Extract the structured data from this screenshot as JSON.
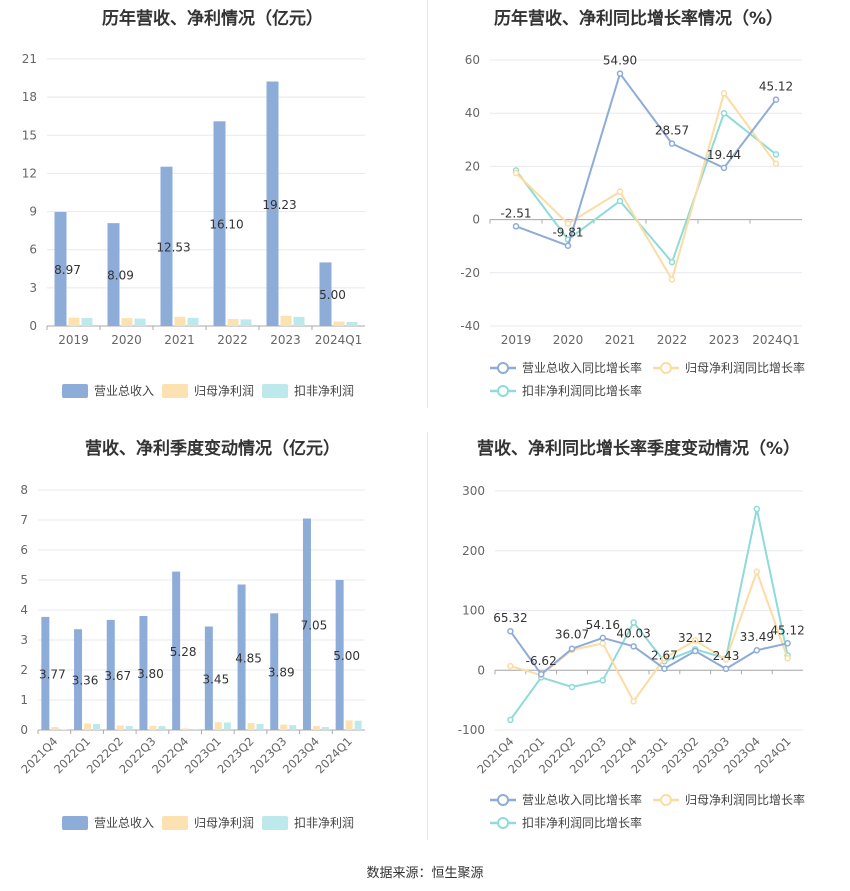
{
  "source": "数据来源：恒生聚源",
  "colors": {
    "revenue": "#8eacd8",
    "net_profit": "#fbe2b0",
    "deducted_profit": "#bde8ec",
    "revenue_line": "#8eacd8",
    "net_line": "#fcdca2",
    "deducted_line": "#8edbd9",
    "grid": "#e8e8ee",
    "axis_text": "#666666"
  },
  "chart_data": [
    {
      "id": "annual-amount",
      "type": "bar",
      "title": "历年营收、净利情况（亿元）",
      "categories": [
        "2019",
        "2020",
        "2021",
        "2022",
        "2023",
        "2024Q1"
      ],
      "ylim": [
        0,
        21
      ],
      "yticks": [
        0,
        3,
        6,
        9,
        12,
        15,
        18,
        21
      ],
      "series": [
        {
          "name": "营业总收入",
          "values": [
            8.97,
            8.09,
            12.53,
            16.1,
            19.23,
            5.0
          ],
          "labels": [
            "8.97",
            "8.09",
            "12.53",
            "16.10",
            "19.23",
            "5.00"
          ]
        },
        {
          "name": "归母净利润",
          "values": [
            0.65,
            0.62,
            0.72,
            0.55,
            0.8,
            0.35
          ]
        },
        {
          "name": "扣非净利润",
          "values": [
            0.62,
            0.58,
            0.64,
            0.52,
            0.72,
            0.32
          ]
        }
      ],
      "legend_position": "bottom"
    },
    {
      "id": "annual-growth",
      "type": "line",
      "title": "历年营收、净利同比增长率情况（%）",
      "categories": [
        "2019",
        "2020",
        "2021",
        "2022",
        "2023",
        "2024Q1"
      ],
      "ylim": [
        -40,
        60
      ],
      "yticks": [
        -40,
        -20,
        0,
        20,
        40,
        60
      ],
      "series": [
        {
          "name": "营业总收入同比增长率",
          "values": [
            -2.51,
            -9.81,
            54.9,
            28.57,
            19.44,
            45.12
          ],
          "labels": [
            "-2.51",
            "-9.81",
            "54.90",
            "28.57",
            "19.44",
            "45.12"
          ]
        },
        {
          "name": "归母净利润同比增长率",
          "values": [
            17.5,
            -1.5,
            10.5,
            -22.5,
            47.5,
            21.0
          ]
        },
        {
          "name": "扣非净利润同比增长率",
          "values": [
            18.5,
            -7.5,
            7.0,
            -16.0,
            40.0,
            24.5
          ]
        }
      ],
      "legend_position": "bottom"
    },
    {
      "id": "quarterly-amount",
      "type": "bar",
      "title": "营收、净利季度变动情况（亿元）",
      "categories": [
        "2021Q4",
        "2022Q1",
        "2022Q2",
        "2022Q3",
        "2022Q4",
        "2023Q1",
        "2023Q2",
        "2023Q3",
        "2023Q4",
        "2024Q1"
      ],
      "ylim": [
        0,
        8
      ],
      "yticks": [
        0,
        1,
        2,
        3,
        4,
        5,
        6,
        7,
        8
      ],
      "series": [
        {
          "name": "营业总收入",
          "values": [
            3.77,
            3.36,
            3.67,
            3.8,
            5.28,
            3.45,
            4.85,
            3.89,
            7.05,
            5.0
          ],
          "labels": [
            "3.77",
            "3.36",
            "3.67",
            "3.80",
            "5.28",
            "3.45",
            "4.85",
            "3.89",
            "7.05",
            "5.00"
          ]
        },
        {
          "name": "归母净利润",
          "values": [
            0.1,
            0.22,
            0.15,
            0.14,
            0.05,
            0.26,
            0.23,
            0.18,
            0.13,
            0.32
          ]
        },
        {
          "name": "扣非净利润",
          "values": [
            0.02,
            0.2,
            0.13,
            0.13,
            0.03,
            0.25,
            0.2,
            0.16,
            0.1,
            0.31
          ]
        }
      ],
      "legend_position": "bottom"
    },
    {
      "id": "quarterly-growth",
      "type": "line",
      "title": "营收、净利同比增长率季度变动情况（%）",
      "categories": [
        "2021Q4",
        "2022Q1",
        "2022Q2",
        "2022Q3",
        "2022Q4",
        "2023Q1",
        "2023Q2",
        "2023Q3",
        "2023Q4",
        "2024Q1"
      ],
      "ylim": [
        -100,
        300
      ],
      "yticks": [
        -100,
        0,
        100,
        200,
        300
      ],
      "series": [
        {
          "name": "营业总收入同比增长率",
          "values": [
            65.32,
            -6.62,
            36.07,
            54.16,
            40.03,
            2.67,
            32.12,
            2.43,
            33.49,
            45.12
          ],
          "labels": [
            "65.32",
            "-6.62",
            "36.07",
            "54.16",
            "40.03",
            "2.67",
            "32.12",
            "2.43",
            "33.49",
            "45.12"
          ]
        },
        {
          "name": "归母净利润同比增长率",
          "values": [
            7,
            -8,
            34,
            45,
            -52,
            20,
            50,
            18,
            165,
            20
          ]
        },
        {
          "name": "扣非净利润同比增长率",
          "values": [
            -83,
            -12,
            -28,
            -17,
            80,
            15,
            35,
            20,
            270,
            25
          ]
        }
      ],
      "legend_position": "bottom"
    }
  ]
}
